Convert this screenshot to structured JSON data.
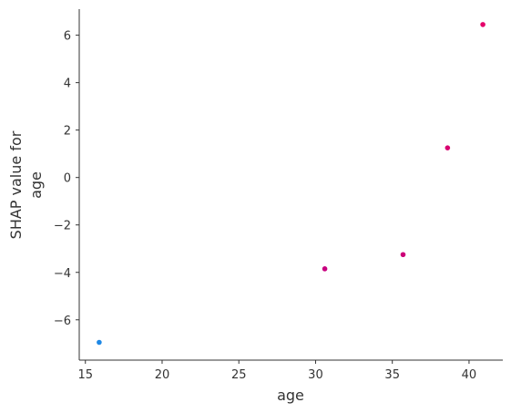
{
  "chart_data": {
    "type": "scatter",
    "title": "",
    "xlabel": "age",
    "ylabel_lines": [
      "SHAP value for",
      "age"
    ],
    "xlim": [
      14.6,
      42.2
    ],
    "ylim": [
      -7.7,
      7.1
    ],
    "xticks": [
      15,
      20,
      25,
      30,
      35,
      40
    ],
    "yticks": [
      -6,
      -4,
      -2,
      0,
      2,
      4,
      6
    ],
    "xtick_labels": [
      "15",
      "20",
      "25",
      "30",
      "35",
      "40"
    ],
    "ytick_labels": [
      "−6",
      "−4",
      "−2",
      "0",
      "2",
      "4",
      "6"
    ],
    "grid": false,
    "points": [
      {
        "x": 15.9,
        "y": -6.95,
        "color": "#1e88e5"
      },
      {
        "x": 30.6,
        "y": -3.85,
        "color": "#c8007f"
      },
      {
        "x": 35.7,
        "y": -3.25,
        "color": "#cc0078"
      },
      {
        "x": 38.6,
        "y": 1.25,
        "color": "#d80070"
      },
      {
        "x": 40.9,
        "y": 6.45,
        "color": "#e5006a"
      }
    ]
  }
}
